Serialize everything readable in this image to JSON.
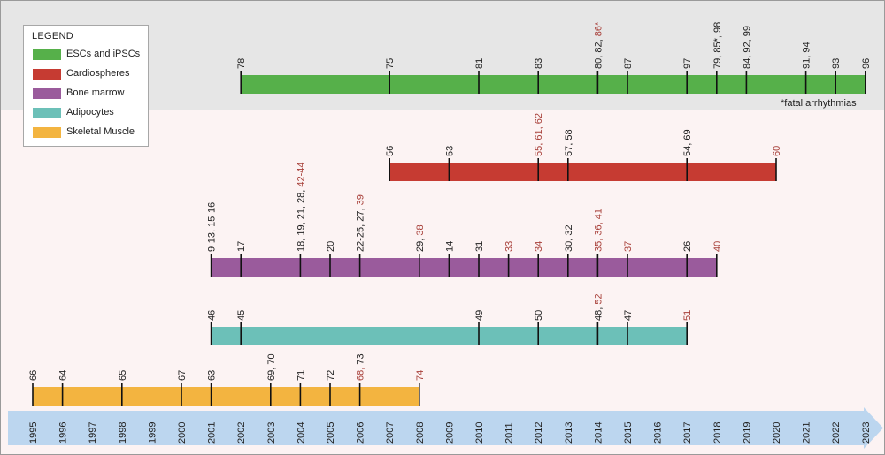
{
  "legend": {
    "title": "LEGEND",
    "items": [
      {
        "label": "ESCs and iPSCs",
        "color": "#56b04a"
      },
      {
        "label": "Cardiospheres",
        "color": "#c63b32"
      },
      {
        "label": "Bone marrow",
        "color": "#9a5b9c"
      },
      {
        "label": "Adipocytes",
        "color": "#6cc0b8"
      },
      {
        "label": "Skeletal Muscle",
        "color": "#f3b440"
      }
    ]
  },
  "footnote": "*fatal arrhythmias",
  "label_colors": {
    "black": "#222222",
    "red": "#a8403a"
  },
  "timeline": {
    "years": [
      "1995",
      "1996",
      "1997",
      "1998",
      "1999",
      "2000",
      "2001",
      "2002",
      "2003",
      "2004",
      "2005",
      "2006",
      "2007",
      "2008",
      "2009",
      "2010",
      "2011",
      "2012",
      "2013",
      "2014",
      "2015",
      "2016",
      "2017",
      "2018",
      "2019",
      "2020",
      "2021",
      "2022",
      "2023"
    ],
    "color": "#bcd6ef"
  },
  "tracks": [
    {
      "name": "ESCs and iPSCs",
      "color": "#56b04a",
      "start": 2002,
      "end": 2023,
      "ticks": [
        {
          "year": 2002,
          "label": [
            {
              "t": "78",
              "c": "black"
            }
          ]
        },
        {
          "year": 2007,
          "label": [
            {
              "t": "75",
              "c": "black"
            }
          ]
        },
        {
          "year": 2010,
          "label": [
            {
              "t": "81",
              "c": "black"
            }
          ]
        },
        {
          "year": 2012,
          "label": [
            {
              "t": "83",
              "c": "black"
            }
          ]
        },
        {
          "year": 2014,
          "label": [
            {
              "t": "80, 82, ",
              "c": "black"
            },
            {
              "t": "86*",
              "c": "red"
            }
          ]
        },
        {
          "year": 2015,
          "label": [
            {
              "t": "87",
              "c": "black"
            }
          ]
        },
        {
          "year": 2017,
          "label": [
            {
              "t": "97",
              "c": "black"
            }
          ]
        },
        {
          "year": 2018,
          "label": [
            {
              "t": "79, 85*, 98",
              "c": "black"
            }
          ]
        },
        {
          "year": 2019,
          "label": [
            {
              "t": "84, 92, 99",
              "c": "black"
            }
          ]
        },
        {
          "year": 2021,
          "label": [
            {
              "t": "91, 94",
              "c": "black"
            }
          ]
        },
        {
          "year": 2022,
          "label": [
            {
              "t": "93",
              "c": "black"
            }
          ]
        },
        {
          "year": 2023,
          "label": [
            {
              "t": "96",
              "c": "black"
            }
          ]
        }
      ]
    },
    {
      "name": "Cardiospheres",
      "color": "#c63b32",
      "start": 2007,
      "end": 2020,
      "ticks": [
        {
          "year": 2007,
          "label": [
            {
              "t": "56",
              "c": "black"
            }
          ]
        },
        {
          "year": 2009,
          "label": [
            {
              "t": "53",
              "c": "black"
            }
          ]
        },
        {
          "year": 2012,
          "label": [
            {
              "t": "55, 61, 62",
              "c": "red"
            }
          ]
        },
        {
          "year": 2013,
          "label": [
            {
              "t": "57, 58",
              "c": "black"
            }
          ]
        },
        {
          "year": 2017,
          "label": [
            {
              "t": "54, 69",
              "c": "black"
            }
          ]
        },
        {
          "year": 2020,
          "label": [
            {
              "t": "60",
              "c": "red"
            }
          ]
        }
      ]
    },
    {
      "name": "Bone marrow",
      "color": "#9a5b9c",
      "start": 2001,
      "end": 2018,
      "ticks": [
        {
          "year": 2001,
          "label": [
            {
              "t": "9-13, 15-16",
              "c": "black"
            }
          ]
        },
        {
          "year": 2002,
          "label": [
            {
              "t": "17",
              "c": "black"
            }
          ]
        },
        {
          "year": 2004,
          "label": [
            {
              "t": "18, 19, 21, 28, ",
              "c": "black"
            },
            {
              "t": "42-44",
              "c": "red"
            }
          ]
        },
        {
          "year": 2005,
          "label": [
            {
              "t": "20",
              "c": "black"
            }
          ]
        },
        {
          "year": 2006,
          "label": [
            {
              "t": "22-25, 27, ",
              "c": "black"
            },
            {
              "t": "39",
              "c": "red"
            }
          ]
        },
        {
          "year": 2008,
          "label": [
            {
              "t": "29, ",
              "c": "black"
            },
            {
              "t": "38",
              "c": "red"
            }
          ]
        },
        {
          "year": 2009,
          "label": [
            {
              "t": "14",
              "c": "black"
            }
          ]
        },
        {
          "year": 2010,
          "label": [
            {
              "t": "31",
              "c": "black"
            }
          ]
        },
        {
          "year": 2011,
          "label": [
            {
              "t": "33",
              "c": "red"
            }
          ]
        },
        {
          "year": 2012,
          "label": [
            {
              "t": "34",
              "c": "red"
            }
          ]
        },
        {
          "year": 2013,
          "label": [
            {
              "t": "30, 32",
              "c": "black"
            }
          ]
        },
        {
          "year": 2014,
          "label": [
            {
              "t": "35, 36, 41",
              "c": "red"
            }
          ]
        },
        {
          "year": 2015,
          "label": [
            {
              "t": "37",
              "c": "red"
            }
          ]
        },
        {
          "year": 2017,
          "label": [
            {
              "t": "26",
              "c": "black"
            }
          ]
        },
        {
          "year": 2018,
          "label": [
            {
              "t": "40",
              "c": "red"
            }
          ]
        }
      ]
    },
    {
      "name": "Adipocytes",
      "color": "#6cc0b8",
      "start": 2001,
      "end": 2017,
      "ticks": [
        {
          "year": 2001,
          "label": [
            {
              "t": "46",
              "c": "black"
            }
          ]
        },
        {
          "year": 2002,
          "label": [
            {
              "t": "45",
              "c": "black"
            }
          ]
        },
        {
          "year": 2010,
          "label": [
            {
              "t": "49",
              "c": "black"
            }
          ]
        },
        {
          "year": 2012,
          "label": [
            {
              "t": "50",
              "c": "black"
            }
          ]
        },
        {
          "year": 2014,
          "label": [
            {
              "t": "48, ",
              "c": "black"
            },
            {
              "t": "52",
              "c": "red"
            }
          ]
        },
        {
          "year": 2015,
          "label": [
            {
              "t": "47",
              "c": "black"
            }
          ]
        },
        {
          "year": 2017,
          "label": [
            {
              "t": "51",
              "c": "red"
            }
          ]
        }
      ]
    },
    {
      "name": "Skeletal Muscle",
      "color": "#f3b440",
      "start": 1995,
      "end": 2008,
      "ticks": [
        {
          "year": 1995,
          "label": [
            {
              "t": "66",
              "c": "black"
            }
          ]
        },
        {
          "year": 1996,
          "label": [
            {
              "t": "64",
              "c": "black"
            }
          ]
        },
        {
          "year": 1998,
          "label": [
            {
              "t": "65",
              "c": "black"
            }
          ]
        },
        {
          "year": 2000,
          "label": [
            {
              "t": "67",
              "c": "black"
            }
          ]
        },
        {
          "year": 2001,
          "label": [
            {
              "t": "63",
              "c": "black"
            }
          ]
        },
        {
          "year": 2003,
          "label": [
            {
              "t": "69, 70",
              "c": "black"
            }
          ]
        },
        {
          "year": 2004,
          "label": [
            {
              "t": "71",
              "c": "black"
            }
          ]
        },
        {
          "year": 2005,
          "label": [
            {
              "t": "72",
              "c": "black"
            }
          ]
        },
        {
          "year": 2006,
          "label": [
            {
              "t": "68, ",
              "c": "red"
            },
            {
              "t": "73",
              "c": "black"
            }
          ]
        },
        {
          "year": 2008,
          "label": [
            {
              "t": "74",
              "c": "red"
            }
          ]
        }
      ]
    }
  ]
}
